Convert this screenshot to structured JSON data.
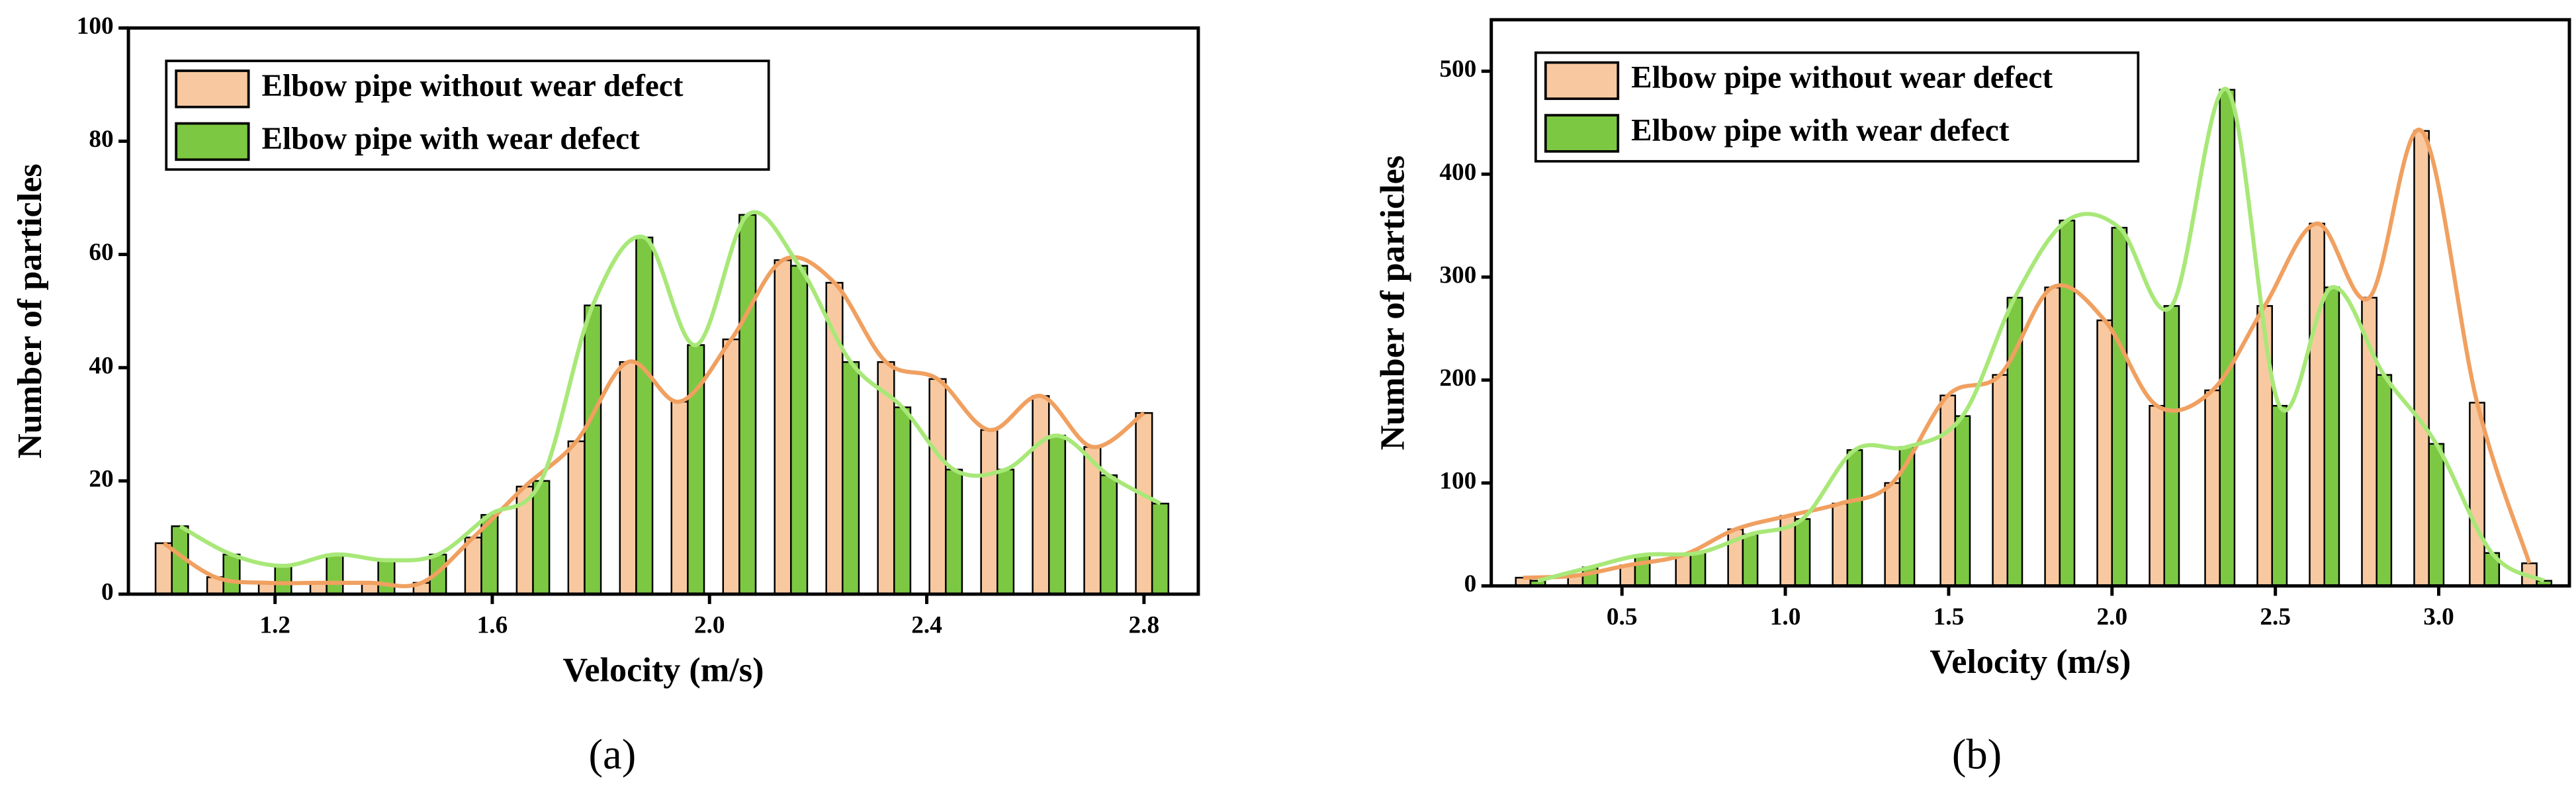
{
  "chart_data": [
    {
      "type": "bar",
      "label": "(a)",
      "xlabel": "Velocity (m/s)",
      "ylabel": "Number of particles",
      "x": [
        1.01,
        1.105,
        1.2,
        1.295,
        1.39,
        1.485,
        1.58,
        1.675,
        1.77,
        1.865,
        1.96,
        2.055,
        2.15,
        2.245,
        2.34,
        2.435,
        2.53,
        2.625,
        2.72,
        2.815
      ],
      "series": [
        {
          "name": "Elbow pipe without wear defect",
          "color": "#f8c9a0",
          "line_color": "#f0a060",
          "values": [
            9,
            3,
            2,
            2,
            2,
            2,
            10,
            19,
            27,
            41,
            34,
            45,
            59,
            55,
            41,
            38,
            29,
            35,
            26,
            32
          ]
        },
        {
          "name": "Elbow pipe with wear defect",
          "color": "#7cc842",
          "line_color": "#a8e878",
          "values": [
            12,
            7,
            5,
            7,
            6,
            7,
            14,
            20,
            51,
            63,
            44,
            67,
            58,
            41,
            33,
            22,
            22,
            28,
            21,
            16
          ]
        }
      ],
      "xlim": [
        0.93,
        2.9
      ],
      "ylim": [
        0,
        100
      ],
      "xticks": [
        1.2,
        1.6,
        {
          "value": 2,
          "label": "2.0"
        },
        2.4,
        2.8
      ],
      "yticks": [
        0,
        20,
        40,
        60,
        80,
        100
      ],
      "legend": "upper left"
    },
    {
      "type": "bar",
      "label": "(b)",
      "xlabel": "Velocity (m/s)",
      "ylabel": "Number of particles",
      "x": [
        0.22,
        0.38,
        0.54,
        0.71,
        0.87,
        1.03,
        1.19,
        1.35,
        1.52,
        1.68,
        1.84,
        2.0,
        2.16,
        2.33,
        2.49,
        2.65,
        2.81,
        2.97,
        3.14,
        3.3
      ],
      "series": [
        {
          "name": "Elbow pipe without wear defect",
          "color": "#f8c9a0",
          "line_color": "#f0a060",
          "values": [
            8,
            10,
            20,
            30,
            55,
            68,
            80,
            100,
            185,
            205,
            290,
            258,
            175,
            190,
            272,
            352,
            280,
            442,
            178,
            22
          ]
        },
        {
          "name": "Elbow pipe with wear defect",
          "color": "#7cc842",
          "line_color": "#a8e878",
          "values": [
            5,
            18,
            30,
            32,
            50,
            65,
            132,
            135,
            165,
            280,
            355,
            348,
            272,
            482,
            175,
            290,
            205,
            138,
            32,
            5
          ]
        }
      ],
      "xlim": [
        0.1,
        3.4
      ],
      "ylim": [
        0,
        550
      ],
      "xticks": [
        0.5,
        {
          "value": 1,
          "label": "1.0"
        },
        1.5,
        {
          "value": 2,
          "label": "2.0"
        },
        2.5,
        {
          "value": 3,
          "label": "3.0"
        }
      ],
      "yticks": [
        0,
        100,
        200,
        300,
        400,
        500
      ],
      "legend": "upper left"
    }
  ]
}
